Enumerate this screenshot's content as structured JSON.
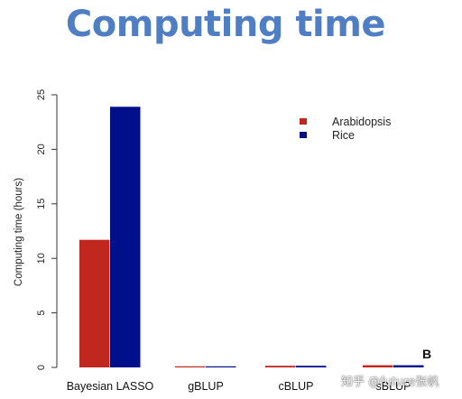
{
  "page": {
    "title": "Computing time"
  },
  "chart_data": {
    "type": "bar",
    "title": "",
    "xlabel": "",
    "ylabel": "Computing time (hours)",
    "categories": [
      "Bayesian LASSO",
      "gBLUP",
      "cBLUP",
      "sBLUP"
    ],
    "series": [
      {
        "name": "Arabidopsis",
        "color": "#c0271f",
        "values": [
          11.7,
          0.1,
          0.15,
          0.2
        ]
      },
      {
        "name": "Rice",
        "color": "#00108a",
        "values": [
          23.9,
          0.1,
          0.15,
          0.2
        ]
      }
    ],
    "ylim": [
      0,
      25
    ],
    "yticks": [
      0,
      5,
      10,
      15,
      20,
      25
    ],
    "grid": false,
    "legend_position": "top-right",
    "panel_label": "B"
  },
  "watermark": "知乎 @future张帆"
}
